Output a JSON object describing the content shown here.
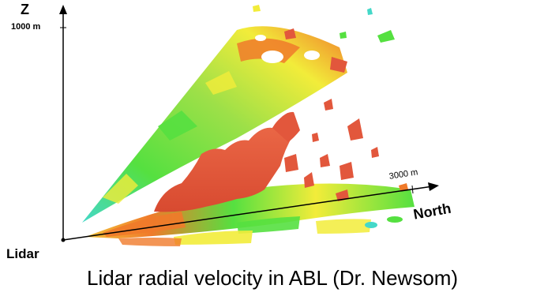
{
  "axes": {
    "z_label": "Z",
    "z_tick": "1000 m",
    "origin_label": "Lidar",
    "north_tick": "3000 m",
    "north_label": "North"
  },
  "caption": "Lidar radial velocity in ABL (Dr. Newsom)",
  "colors": {
    "scan_green": "#55e040",
    "scan_yellow": "#f2ec3a",
    "scan_orange": "#f07a2a",
    "scan_cyan": "#44d8c8",
    "isosurface": "#e2573c",
    "axis": "#000000"
  }
}
